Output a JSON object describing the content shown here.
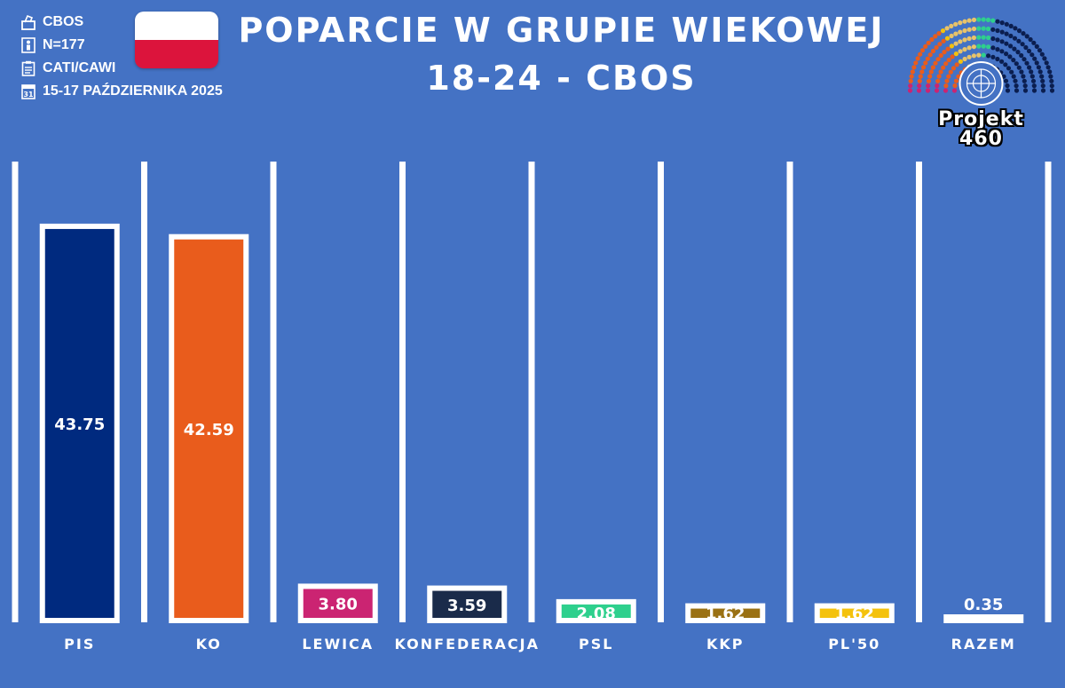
{
  "meta": {
    "source": "CBOS",
    "sample": "N=177",
    "method": "CATI/CAWI",
    "date": "15-17 PAŹDZIERNIKA 2025"
  },
  "title": {
    "line1": "POPARCIE W GRUPIE WIEKOWEJ",
    "line2": "18-24 - CBOS"
  },
  "logo": {
    "line1": "Projekt",
    "line2": "460"
  },
  "icons": [
    "ballot-box-icon",
    "person-icon",
    "clipboard-icon",
    "calendar-icon",
    "poland-flag",
    "parliament-logo"
  ],
  "chart_data": {
    "type": "bar",
    "categories": [
      "PIS",
      "KO",
      "LEWICA",
      "KONFEDERACJA",
      "PSL",
      "KKP",
      "PL'50",
      "RAZEM"
    ],
    "values": [
      43.75,
      42.59,
      3.8,
      3.59,
      2.08,
      1.62,
      1.62,
      0.35
    ],
    "value_labels": [
      "43.75",
      "42.59",
      "3.80",
      "3.59",
      "2.08",
      "1.62",
      "1.62",
      "0.35"
    ],
    "colors": [
      "#002a7f",
      "#e95c1c",
      "#cb2472",
      "#1a2b4a",
      "#2ed08d",
      "#9a7114",
      "#f4c20d",
      "#ffffff"
    ],
    "grid": true,
    "legend": "none"
  }
}
